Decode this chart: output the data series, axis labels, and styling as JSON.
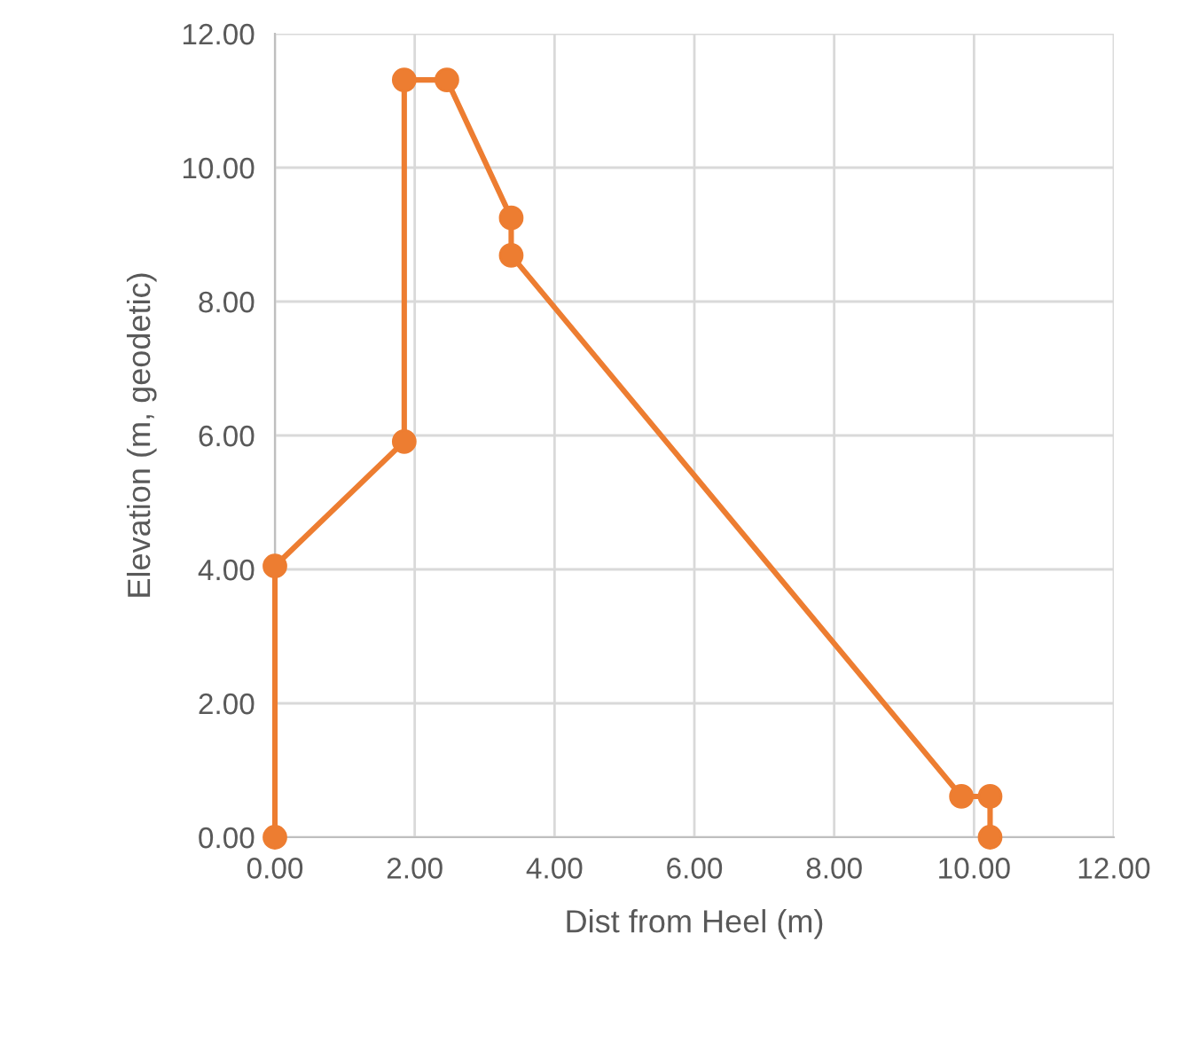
{
  "chart_data": {
    "type": "line",
    "xlabel": "Dist from Heel (m)",
    "ylabel": "Elevation (m, geodetic)",
    "series": [
      {
        "color": "#ed7d31",
        "x": [
          0,
          0,
          1.85,
          1.85,
          2.46,
          3.38,
          3.38,
          9.82,
          10.23,
          10.23
        ],
        "values": [
          0,
          4.05,
          5.91,
          11.31,
          11.31,
          9.25,
          8.69,
          0.61,
          0.61,
          0
        ]
      }
    ],
    "xlim": [
      0,
      12
    ],
    "ylim": [
      0,
      12
    ],
    "xticks": [
      {
        "value": 0,
        "label": "0.00"
      },
      {
        "value": 2,
        "label": "2.00"
      },
      {
        "value": 4,
        "label": "4.00"
      },
      {
        "value": 6,
        "label": "6.00"
      },
      {
        "value": 8,
        "label": "8.00"
      },
      {
        "value": 10,
        "label": "10.00"
      },
      {
        "value": 12,
        "label": "12.00"
      }
    ],
    "yticks": [
      {
        "value": 0,
        "label": "0.00"
      },
      {
        "value": 2,
        "label": "2.00"
      },
      {
        "value": 4,
        "label": "4.00"
      },
      {
        "value": 6,
        "label": "6.00"
      },
      {
        "value": 8,
        "label": "8.00"
      },
      {
        "value": 10,
        "label": "10.00"
      },
      {
        "value": 12,
        "label": "12.00"
      }
    ],
    "grid": true,
    "marker": "circle",
    "line_style": "solid"
  }
}
